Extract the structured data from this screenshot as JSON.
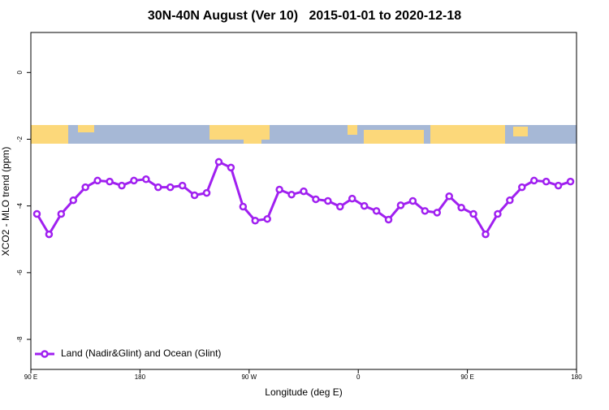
{
  "chart_data": {
    "type": "line",
    "title": "30N-40N August (Ver 10)   2015-01-01 to 2020-12-18",
    "x_label": "Longitude (deg E)",
    "y_label": "XCO2 - MLO trend (ppm)",
    "xlim": [
      90,
      540
    ],
    "xticks": [
      {
        "value": 90,
        "label": "90 E"
      },
      {
        "value": 180,
        "label": "180"
      },
      {
        "value": 270,
        "label": "90 W"
      },
      {
        "value": 360,
        "label": "0"
      },
      {
        "value": 450,
        "label": "90 E"
      },
      {
        "value": 540,
        "label": "180"
      }
    ],
    "ylim": [
      -8.9,
      1.2
    ],
    "yticks": [
      0,
      -2,
      -4,
      -6,
      -8
    ],
    "legend_position": "bottom-left",
    "x": [
      95,
      105,
      115,
      125,
      135,
      145,
      155,
      165,
      175,
      185,
      195,
      205,
      215,
      225,
      235,
      245,
      255,
      265,
      275,
      285,
      295,
      305,
      315,
      325,
      335,
      345,
      355,
      365,
      375,
      385,
      395,
      405,
      415,
      425,
      435,
      445,
      455,
      465,
      475,
      485,
      495,
      505,
      515,
      525,
      535
    ],
    "series": [
      {
        "name": "Land (Nadir&Glint) and Ocean (Glint)",
        "color": "#a020f0",
        "values": [
          -4.24,
          -4.85,
          -4.24,
          -3.83,
          -3.44,
          -3.24,
          -3.27,
          -3.39,
          -3.24,
          -3.2,
          -3.44,
          -3.44,
          -3.39,
          -3.68,
          -3.61,
          -2.68,
          -2.85,
          -4.02,
          -4.44,
          -4.39,
          -3.51,
          -3.66,
          -3.56,
          -3.8,
          -3.85,
          -4.02,
          -3.78,
          -4.0,
          -4.15,
          -4.41,
          -3.98,
          -3.85,
          -4.15,
          -4.2,
          -3.71,
          -4.05,
          -4.24,
          -4.85,
          -4.24,
          -3.83,
          -3.44,
          -3.24,
          -3.27,
          -3.39,
          -3.27
        ]
      }
    ]
  }
}
